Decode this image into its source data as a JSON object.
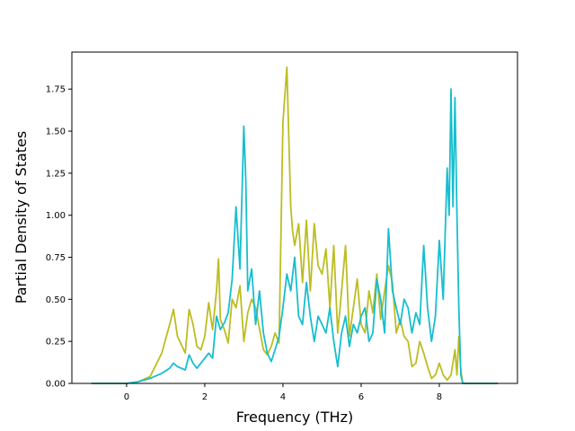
{
  "chart_data": {
    "type": "line",
    "title": "",
    "xlabel": "Frequency (THz)",
    "ylabel": "Partial Density of States",
    "xlim": [
      -1.4,
      10.0
    ],
    "ylim": [
      0.0,
      1.97
    ],
    "xticks": [
      0,
      2,
      4,
      6,
      8
    ],
    "xtick_labels": [
      "0",
      "2",
      "4",
      "6",
      "8"
    ],
    "yticks": [
      0.0,
      0.25,
      0.5,
      0.75,
      1.0,
      1.25,
      1.5,
      1.75
    ],
    "ytick_labels": [
      "0.00",
      "0.25",
      "0.50",
      "0.75",
      "1.00",
      "1.25",
      "1.50",
      "1.75"
    ],
    "grid": false,
    "legend": "none",
    "series": [
      {
        "color": "#bcbd22",
        "x": [
          -0.9,
          0.0,
          0.3,
          0.6,
          0.9,
          1.1,
          1.2,
          1.3,
          1.5,
          1.6,
          1.7,
          1.8,
          1.9,
          2.0,
          2.1,
          2.2,
          2.3,
          2.35,
          2.4,
          2.5,
          2.6,
          2.7,
          2.8,
          2.9,
          3.0,
          3.1,
          3.2,
          3.3,
          3.5,
          3.6,
          3.7,
          3.8,
          3.9,
          4.0,
          4.1,
          4.2,
          4.25,
          4.3,
          4.4,
          4.5,
          4.6,
          4.7,
          4.8,
          4.9,
          5.0,
          5.1,
          5.2,
          5.3,
          5.4,
          5.5,
          5.6,
          5.7,
          5.8,
          5.9,
          6.0,
          6.1,
          6.2,
          6.3,
          6.4,
          6.5,
          6.6,
          6.7,
          6.8,
          6.9,
          7.0,
          7.1,
          7.2,
          7.3,
          7.4,
          7.5,
          7.6,
          7.7,
          7.8,
          7.9,
          8.0,
          8.1,
          8.2,
          8.3,
          8.4,
          8.45,
          8.5,
          8.55,
          8.6,
          8.7,
          9.0,
          9.5
        ],
        "y": [
          0.0,
          0.0,
          0.01,
          0.04,
          0.18,
          0.35,
          0.44,
          0.28,
          0.18,
          0.44,
          0.35,
          0.22,
          0.2,
          0.28,
          0.48,
          0.32,
          0.55,
          0.74,
          0.38,
          0.32,
          0.24,
          0.5,
          0.45,
          0.58,
          0.25,
          0.42,
          0.5,
          0.45,
          0.2,
          0.17,
          0.22,
          0.3,
          0.24,
          1.55,
          1.88,
          1.05,
          0.9,
          0.82,
          0.95,
          0.6,
          0.97,
          0.55,
          0.95,
          0.7,
          0.65,
          0.8,
          0.45,
          0.82,
          0.3,
          0.55,
          0.82,
          0.28,
          0.45,
          0.62,
          0.35,
          0.3,
          0.55,
          0.42,
          0.65,
          0.38,
          0.55,
          0.7,
          0.6,
          0.3,
          0.38,
          0.28,
          0.25,
          0.1,
          0.12,
          0.25,
          0.18,
          0.1,
          0.03,
          0.05,
          0.12,
          0.05,
          0.02,
          0.05,
          0.2,
          0.05,
          0.28,
          0.08,
          0.0,
          0.0,
          0.0,
          0.0
        ]
      },
      {
        "color": "#17becf",
        "x": [
          -0.9,
          0.0,
          0.3,
          0.6,
          0.9,
          1.1,
          1.2,
          1.3,
          1.5,
          1.6,
          1.7,
          1.8,
          2.0,
          2.1,
          2.2,
          2.3,
          2.4,
          2.5,
          2.6,
          2.7,
          2.8,
          2.9,
          3.0,
          3.05,
          3.1,
          3.2,
          3.3,
          3.4,
          3.5,
          3.6,
          3.7,
          3.8,
          3.9,
          4.0,
          4.1,
          4.2,
          4.3,
          4.4,
          4.5,
          4.6,
          4.7,
          4.8,
          4.9,
          5.0,
          5.1,
          5.2,
          5.3,
          5.4,
          5.5,
          5.6,
          5.7,
          5.8,
          5.9,
          6.0,
          6.1,
          6.2,
          6.3,
          6.4,
          6.5,
          6.6,
          6.7,
          6.8,
          6.9,
          7.0,
          7.1,
          7.2,
          7.3,
          7.4,
          7.5,
          7.6,
          7.7,
          7.8,
          7.9,
          8.0,
          8.1,
          8.2,
          8.25,
          8.3,
          8.35,
          8.4,
          8.45,
          8.5,
          8.55,
          8.6,
          8.7,
          9.0,
          9.5
        ],
        "y": [
          0.0,
          0.0,
          0.01,
          0.03,
          0.06,
          0.09,
          0.12,
          0.1,
          0.08,
          0.17,
          0.12,
          0.09,
          0.15,
          0.18,
          0.15,
          0.4,
          0.32,
          0.36,
          0.42,
          0.62,
          1.05,
          0.68,
          1.53,
          1.2,
          0.55,
          0.68,
          0.35,
          0.55,
          0.3,
          0.18,
          0.13,
          0.2,
          0.28,
          0.45,
          0.65,
          0.55,
          0.75,
          0.4,
          0.35,
          0.6,
          0.4,
          0.25,
          0.4,
          0.35,
          0.3,
          0.45,
          0.25,
          0.1,
          0.3,
          0.4,
          0.22,
          0.35,
          0.3,
          0.4,
          0.45,
          0.25,
          0.3,
          0.62,
          0.5,
          0.3,
          0.92,
          0.55,
          0.45,
          0.35,
          0.5,
          0.45,
          0.3,
          0.42,
          0.35,
          0.82,
          0.45,
          0.25,
          0.4,
          0.85,
          0.5,
          1.28,
          1.0,
          1.75,
          1.05,
          1.7,
          1.0,
          0.45,
          0.05,
          0.0,
          0.0,
          0.0,
          0.0
        ]
      }
    ]
  }
}
